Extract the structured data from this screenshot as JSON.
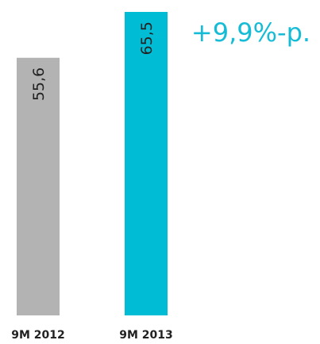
{
  "chart_data": {
    "type": "bar",
    "categories": [
      "9M 2012",
      "9M 2013"
    ],
    "values": [
      55.6,
      65.5
    ],
    "value_labels": [
      "55,6",
      "65,5"
    ],
    "bar_colors": [
      "#b3b3b3",
      "#00bcd5"
    ],
    "annotation": "+9,9%-p.",
    "annotation_color": "#16bcd6",
    "grid": false,
    "ylim": [
      0,
      65.5
    ]
  }
}
